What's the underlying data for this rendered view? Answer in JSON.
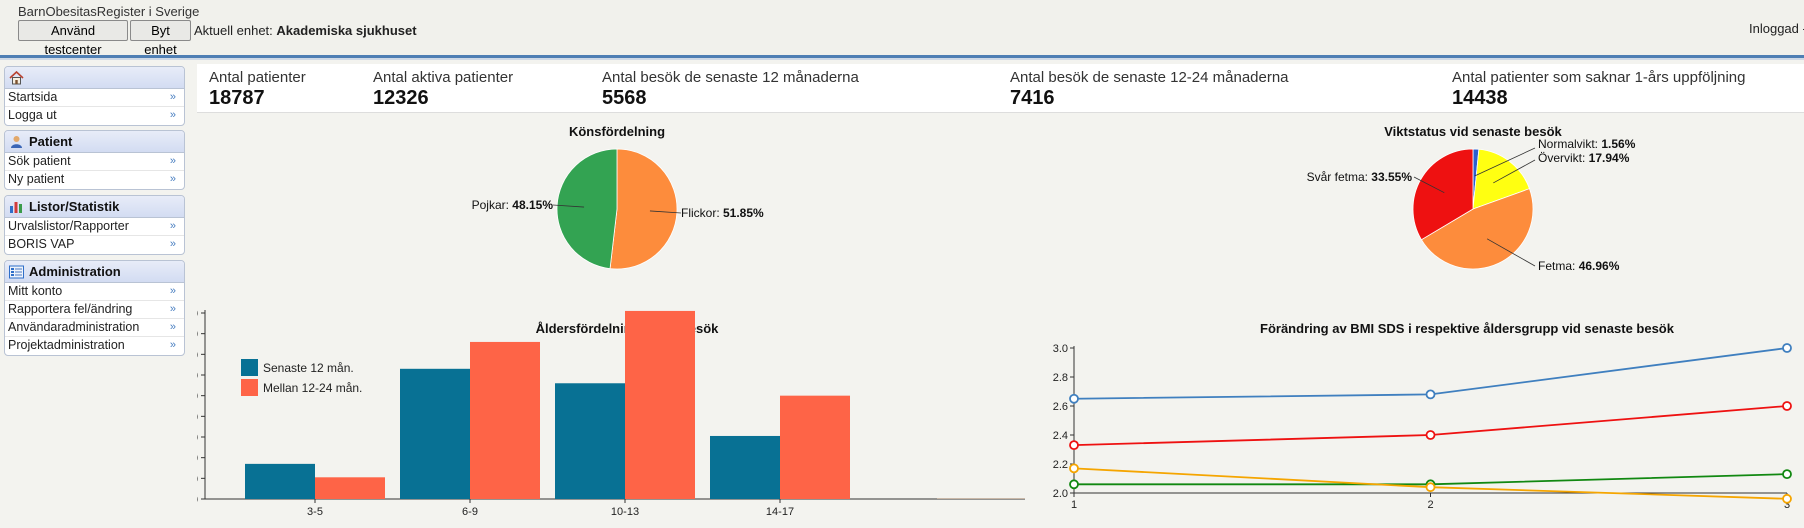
{
  "header": {
    "app_title": "BarnObesitasRegister i Sverige",
    "btn_testcenter": "Använd testcenter",
    "btn_switch_unit": "Byt enhet",
    "unit_prefix": "Aktuell enhet:",
    "unit_name": "Akademiska sjukhuset",
    "login_text": "Inloggad -"
  },
  "sidebar": {
    "groups": [
      {
        "title": "",
        "icon": "home-icon",
        "items": [
          {
            "label": "Startsida"
          },
          {
            "label": "Logga ut"
          }
        ]
      },
      {
        "title": "Patient",
        "icon": "patient-icon",
        "items": [
          {
            "label": "Sök patient"
          },
          {
            "label": "Ny patient"
          }
        ]
      },
      {
        "title": "Listor/Statistik",
        "icon": "bar-chart-icon",
        "items": [
          {
            "label": "Urvalslistor/Rapporter"
          },
          {
            "label": "BORIS VAP"
          }
        ]
      },
      {
        "title": "Administration",
        "icon": "admin-grid-icon",
        "items": [
          {
            "label": "Mitt konto"
          },
          {
            "label": "Rapportera fel/ändring"
          },
          {
            "label": "Användaradministration"
          },
          {
            "label": "Projektadministration"
          }
        ]
      }
    ]
  },
  "stats": [
    {
      "label": "Antal patienter",
      "value": "18787"
    },
    {
      "label": "Antal aktiva patienter",
      "value": "12326"
    },
    {
      "label": "Antal besök de senaste 12 månaderna",
      "value": "5568"
    },
    {
      "label": "Antal besök de senaste 12-24 månaderna",
      "value": "7416"
    },
    {
      "label": "Antal patienter som saknar 1-års uppföljning",
      "value": "14438"
    }
  ],
  "colors": {
    "green": "#33a352",
    "orange": "#fd8c3c",
    "red": "#ee1111",
    "yellow": "#ffff11",
    "blue": "#2b5fcf",
    "teal": "#087194",
    "salmon": "#fe6447",
    "line_blue": "#3f7fbf",
    "line_red": "#ee1111",
    "line_green": "#118811",
    "line_yellow": "#f5a500"
  },
  "chart_data": [
    {
      "type": "pie",
      "title": "Könsfördelning",
      "slices": [
        {
          "name": "Flickor",
          "value": 51.85,
          "label_value": "51.85%",
          "color": "#fd8c3c"
        },
        {
          "name": "Pojkar",
          "value": 48.15,
          "label_value": "48.15%",
          "color": "#33a352"
        }
      ]
    },
    {
      "type": "pie",
      "title": "Viktstatus vid senaste besök",
      "slices": [
        {
          "name": "Normalvikt",
          "value": 1.56,
          "label_value": "1.56%",
          "color": "#2b5fcf"
        },
        {
          "name": "Övervikt",
          "value": 17.94,
          "label_value": "17.94%",
          "color": "#ffff11"
        },
        {
          "name": "Fetma",
          "value": 46.96,
          "label_value": "46.96%",
          "color": "#fd8c3c"
        },
        {
          "name": "Svår fetma",
          "value": 33.55,
          "label_value": "33.55%",
          "color": "#ee1111"
        }
      ]
    },
    {
      "type": "bar",
      "title": "Åldersfördelning vid nybesök",
      "categories": [
        "3-5",
        "6-9",
        "10-13",
        "14-17"
      ],
      "series": [
        {
          "name": "Senaste 12 mån.",
          "values": [
            170,
            630,
            560,
            305
          ],
          "color": "#087194"
        },
        {
          "name": "Mellan 12-24 mån.",
          "values": [
            105,
            760,
            910,
            500
          ],
          "color": "#fe6447"
        }
      ],
      "ylim": [
        0,
        900
      ],
      "yticks": [
        "0.0",
        "100",
        "200",
        "300",
        "400",
        "500",
        "600",
        "700",
        "800",
        "900"
      ],
      "legend": "top-left"
    },
    {
      "type": "line",
      "title": "Förändring av BMI SDS i respektive åldersgrupp vid senaste besök",
      "x": [
        1,
        2,
        3
      ],
      "xticks": [
        "1",
        "2",
        "3"
      ],
      "ylim": [
        2.0,
        3.0
      ],
      "yticks": [
        "2.0",
        "2.2",
        "2.4",
        "2.6",
        "2.8",
        "3.0"
      ],
      "series": [
        {
          "values": [
            2.65,
            2.68,
            3.0
          ],
          "color": "#3f7fbf"
        },
        {
          "values": [
            2.33,
            2.4,
            2.6
          ],
          "color": "#ee1111"
        },
        {
          "values": [
            2.06,
            2.06,
            2.13
          ],
          "color": "#118811"
        },
        {
          "values": [
            2.17,
            2.04,
            1.96
          ],
          "color": "#f5a500"
        }
      ]
    }
  ]
}
